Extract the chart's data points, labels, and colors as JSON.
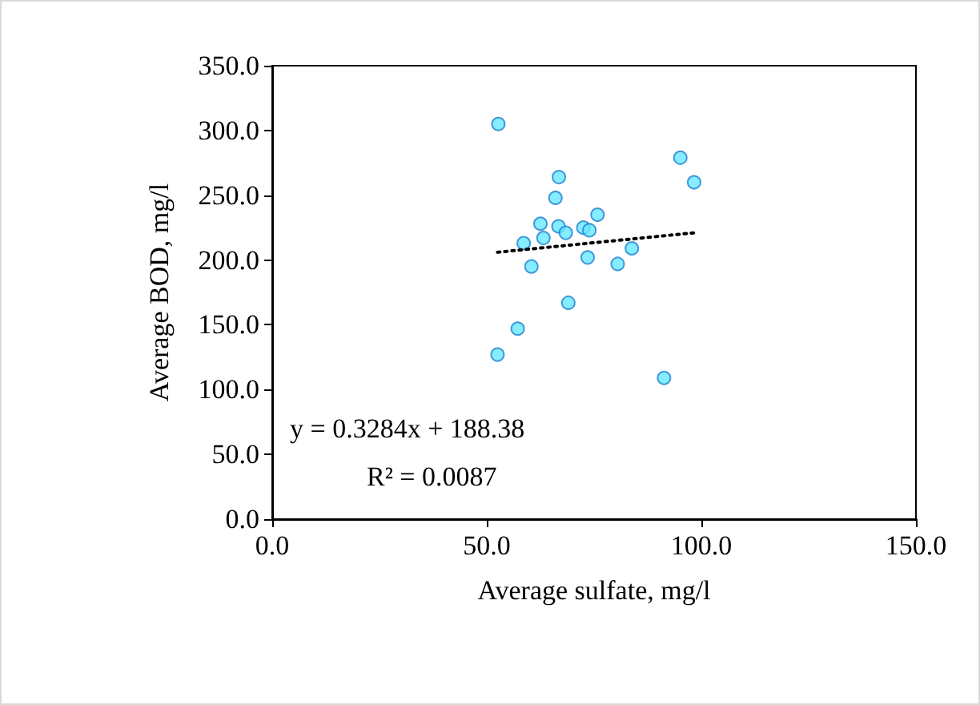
{
  "chart_data": {
    "type": "scatter",
    "xlabel": "Average sulfate, mg/l",
    "ylabel": "Average BOD, mg/l",
    "xlim": [
      0,
      150
    ],
    "xticks": [
      {
        "value": 0,
        "label": "0.0"
      },
      {
        "value": 50,
        "label": "50.0"
      },
      {
        "value": 100,
        "label": "100.0"
      },
      {
        "value": 150,
        "label": "150.0"
      }
    ],
    "ylim": [
      0,
      350
    ],
    "yticks": [
      {
        "value": 0,
        "label": "0.0"
      },
      {
        "value": 50,
        "label": "50.0"
      },
      {
        "value": 100,
        "label": "100.0"
      },
      {
        "value": 150,
        "label": "150.0"
      },
      {
        "value": 200,
        "label": "200.0"
      },
      {
        "value": 250,
        "label": "250.0"
      },
      {
        "value": 300,
        "label": "300.0"
      },
      {
        "value": 350,
        "label": "350.0"
      }
    ],
    "grid": false,
    "marker": "circle",
    "series": [
      {
        "color": "#66e8ff",
        "x": [
          95.1,
          98.3,
          66.8,
          66.0,
          75.8,
          62.5,
          66.7,
          68.4,
          72.5,
          73.9,
          63.2,
          58.6,
          83.8,
          73.5,
          80.5,
          60.4,
          69.0,
          57.2,
          52.5,
          91.3,
          52.7
        ],
        "values": [
          279,
          260,
          264,
          248,
          235,
          228,
          226,
          221,
          225,
          223,
          217,
          213,
          209,
          202,
          197,
          195,
          167,
          147,
          127,
          109,
          305
        ]
      },
      {
        "type": "line",
        "color": "#000000",
        "marker": "none",
        "line_style": "dotted",
        "x": [
          52.5,
          98.3
        ],
        "values": [
          206,
          221
        ]
      }
    ],
    "annotations": [
      "y = 0.3284x + 188.38",
      "R² = 0.0087"
    ]
  }
}
